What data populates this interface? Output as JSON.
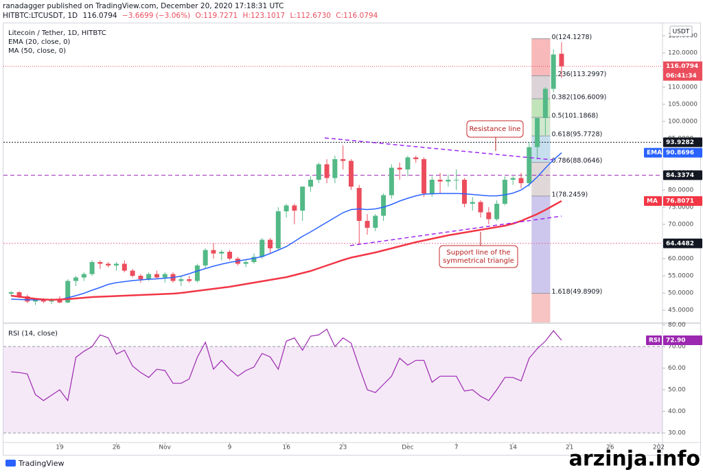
{
  "header": {
    "published": "ranadagger published on TradingView.com, December 20, 2020 17:18:31 UTC",
    "symbol": "HITBTC:LTCUSDT, 1D",
    "quote": "116.0794",
    "change": "−3.6699 (−3.06%)",
    "open": "O:119.7271",
    "high": "H:123.1017",
    "low": "L:112.6730",
    "close": "C:116.0794"
  },
  "footer": {
    "brand": "TradingView",
    "watermark": "arzinja.info"
  },
  "chart_data": [
    {
      "type": "candlestick",
      "title": "Litecoin / Tether, 1D, HITBTC",
      "unit": "USDT",
      "up_color": "#53b987",
      "down_color": "#eb4d5c",
      "open": [
        49.8,
        50.2,
        49,
        47.5,
        48,
        47.5,
        48.2,
        47.2,
        53.5,
        54.5,
        55.5,
        59,
        58.5,
        58,
        58.5,
        56.5,
        55,
        54,
        55.5,
        54.5,
        55.5,
        53.5,
        54,
        53.5,
        58,
        62.5,
        61.5,
        62,
        60,
        58.5,
        59,
        60.5,
        65.5,
        63,
        73.8,
        75.5,
        74,
        81,
        83,
        87.5,
        83.5,
        89,
        88.5,
        80.6,
        71,
        69,
        72.5,
        78.5,
        86.5,
        86,
        89.5,
        89,
        79,
        83,
        82.5,
        83,
        83,
        76,
        76.5,
        73.5,
        71.5,
        76,
        83,
        83.5,
        82,
        92.5,
        101,
        109.5,
        119.7271
      ],
      "high": [
        50.5,
        50.5,
        49.5,
        48.5,
        48.5,
        48.5,
        49,
        54,
        55,
        56,
        59.5,
        59.5,
        59,
        59,
        59.5,
        57,
        55.5,
        56,
        56.5,
        56,
        56,
        55,
        55,
        58.5,
        63,
        64.5,
        62.5,
        62.5,
        60.5,
        59.5,
        61.5,
        66,
        66,
        75,
        76,
        76,
        81,
        84,
        88,
        89,
        90,
        93,
        89,
        81.5,
        73,
        73,
        79,
        87.5,
        88,
        90,
        90,
        89.5,
        84,
        85,
        84.5,
        86,
        83.5,
        78,
        77,
        75,
        77,
        84,
        84,
        85,
        94,
        101,
        110,
        121,
        123.1017
      ],
      "low": [
        49,
        48.5,
        47,
        46.5,
        47,
        46.8,
        47,
        47,
        52,
        53.5,
        55,
        57,
        57.5,
        56.5,
        56,
        54.5,
        53,
        53.5,
        54,
        53,
        53,
        52,
        53,
        53,
        57,
        60,
        59.5,
        59.5,
        58,
        57.5,
        58.5,
        60,
        61.5,
        62.5,
        72,
        70,
        71,
        79.5,
        82,
        82,
        82,
        86,
        80,
        64,
        67,
        68,
        71,
        77.5,
        83,
        84,
        88,
        78,
        78,
        79,
        81,
        80,
        75,
        74,
        72,
        70,
        71,
        75.5,
        81.5,
        80.5,
        81,
        89,
        96,
        108.5,
        112.673
      ],
      "close": [
        50.2,
        49,
        47.5,
        48,
        47.5,
        48.2,
        47.2,
        53.5,
        54.5,
        55.5,
        59,
        58.5,
        58,
        58.5,
        56.5,
        55,
        54,
        55.5,
        54.5,
        55.5,
        53.5,
        54,
        53.5,
        58,
        62.5,
        61.5,
        62,
        60,
        58.5,
        59,
        60.5,
        65.5,
        63,
        73.8,
        75.5,
        74,
        81,
        83,
        87.5,
        83.5,
        89,
        88.5,
        81,
        71,
        69,
        72.5,
        78.5,
        86.5,
        86,
        89.5,
        89,
        79,
        83,
        82.5,
        83,
        83,
        76,
        76.5,
        73.5,
        71.5,
        76,
        83,
        83.5,
        82,
        92.5,
        101,
        109.5,
        119.5,
        116.0794
      ],
      "last_label": "116.0794",
      "countdown": "06:41:34",
      "indicators": [
        {
          "name": "EMA (20, close, 0)",
          "short": "EMA",
          "color": "#2962ff",
          "last_label": "90.8696",
          "values": [
            48.2,
            48.1,
            48,
            48,
            48,
            48,
            48,
            48.6,
            49.2,
            49.9,
            50.8,
            51.6,
            52.5,
            53,
            53.3,
            53.6,
            53.8,
            54,
            54.1,
            54.3,
            54.5,
            54.9,
            55.6,
            56.4,
            57.1,
            57.8,
            58.4,
            58.9,
            59.3,
            59.7,
            60.1,
            60.6,
            61.5,
            62.5,
            63.5,
            65,
            66.5,
            67.8,
            69.2,
            70.6,
            72,
            73.4,
            74.3,
            74.5,
            74.3,
            74.5,
            75,
            75.8,
            76.8,
            77.6,
            78.3,
            78.8,
            78.9,
            79,
            79,
            79,
            78.9,
            78.7,
            78.5,
            78.3,
            78.3,
            78.6,
            79.1,
            80,
            81.6,
            83.8,
            86.4,
            88.8,
            90.8696
          ]
        },
        {
          "name": "MA (50, close, 0)",
          "short": "MA",
          "color": "#f23645",
          "last_label": "76.8071",
          "values": [
            49.2,
            48.9,
            48.6,
            48.3,
            48.1,
            48,
            48.1,
            48.2,
            48.4,
            48.6,
            48.8,
            48.9,
            49,
            49.1,
            49.2,
            49.3,
            49.4,
            49.5,
            49.6,
            49.7,
            49.8,
            50,
            50.3,
            50.6,
            50.9,
            51.2,
            51.5,
            51.8,
            52.2,
            52.6,
            53,
            53.4,
            53.8,
            54.2,
            54.6,
            55.2,
            55.8,
            56.4,
            57.2,
            58,
            58.8,
            59.6,
            60.3,
            60.8,
            61.3,
            61.8,
            62.4,
            63,
            63.6,
            64.2,
            64.8,
            65.3,
            65.8,
            66.3,
            66.8,
            67.2,
            67.6,
            68,
            68.4,
            68.8,
            69.2,
            69.6,
            70.2,
            71,
            72,
            73,
            74.2,
            75.5,
            76.8071
          ]
        }
      ],
      "levels": [
        {
          "value": 93.9282,
          "label": "93.9282"
        },
        {
          "value": 84.3374,
          "label": "84.3374"
        },
        {
          "value": 64.4482,
          "label": "64.4482"
        }
      ],
      "fib": {
        "labels": [
          "0(124.1278)",
          "0.236(113.2997)",
          "0.382(106.6009)",
          "0.5(101.1868)",
          "0.618(95.7728)",
          "0.786(88.0646)",
          "1(78.2459)",
          "1.618(49.8909)"
        ],
        "prices": [
          124.1278,
          113.2997,
          106.6009,
          101.1868,
          95.7728,
          88.0646,
          78.2459,
          49.8909
        ]
      },
      "annotations": [
        "Resistance line",
        "Support line of the",
        "symmetrical triangle"
      ],
      "ylim": [
        41.4,
        127
      ],
      "yticks": [
        {
          "value": 45,
          "label": "45.0000"
        },
        {
          "value": 50,
          "label": "50.0000"
        },
        {
          "value": 55,
          "label": "55.0000"
        },
        {
          "value": 60,
          "label": "60.0000"
        },
        {
          "value": 65,
          "label": "65.0000"
        },
        {
          "value": 70,
          "label": "70.0000"
        },
        {
          "value": 75,
          "label": "75.0000"
        },
        {
          "value": 80,
          "label": "80.0000"
        },
        {
          "value": 85,
          "label": "85.0000"
        },
        {
          "value": 90,
          "label": "90.0000"
        },
        {
          "value": 95,
          "label": "95.0000"
        },
        {
          "value": 100,
          "label": "100.0000"
        },
        {
          "value": 105,
          "label": "105.0000"
        },
        {
          "value": 110,
          "label": "110.0000"
        },
        {
          "value": 115,
          "label": "115.0000"
        },
        {
          "value": 120,
          "label": "120.0000"
        },
        {
          "value": 125,
          "label": "125.0000"
        }
      ],
      "xlim": [
        -0.95,
        80.47
      ],
      "xticks": [
        {
          "value": 6,
          "label": "19"
        },
        {
          "value": 13,
          "label": "26"
        },
        {
          "value": 19,
          "label": "Nov"
        },
        {
          "value": 27,
          "label": "9"
        },
        {
          "value": 34,
          "label": "16"
        },
        {
          "value": 41,
          "label": "23"
        },
        {
          "value": 49,
          "label": "Dec"
        },
        {
          "value": 55,
          "label": "7"
        },
        {
          "value": 62,
          "label": "14"
        },
        {
          "value": 69,
          "label": "21"
        },
        {
          "value": 74,
          "label": "26"
        },
        {
          "value": 80,
          "label": "202"
        }
      ]
    },
    {
      "type": "line",
      "title": "RSI (14, close)",
      "series": [
        {
          "name": "RSI",
          "color": "#9c27b0",
          "last_label": "72.90",
          "values": [
            58.3,
            58,
            57.3,
            47.8,
            45,
            47.5,
            50,
            45,
            65,
            67.8,
            70,
            75.4,
            74,
            66.5,
            68.3,
            61,
            58,
            55.7,
            59.5,
            58.9,
            53,
            53,
            55,
            65,
            72,
            59.5,
            63.6,
            59.5,
            56.3,
            58.9,
            60.5,
            66.8,
            65.2,
            59.5,
            72.5,
            74,
            68.3,
            74.8,
            75.4,
            78,
            70,
            74,
            71.6,
            60.5,
            50,
            48.7,
            52.5,
            56.3,
            64.6,
            61.4,
            63.6,
            63.6,
            53.5,
            56.3,
            56.3,
            56.3,
            49.4,
            50,
            47,
            45,
            50,
            55.7,
            55.7,
            54.1,
            64.6,
            69,
            72.5,
            77.3,
            72.9
          ]
        }
      ],
      "band": [
        30,
        70
      ],
      "ylim": [
        25.6,
        80.2
      ],
      "yticks": [
        {
          "value": 30,
          "label": "30.00"
        },
        {
          "value": 40,
          "label": "40.00"
        },
        {
          "value": 50,
          "label": "50.00"
        },
        {
          "value": 60,
          "label": "60.00"
        },
        {
          "value": 70,
          "label": "70.00"
        },
        {
          "value": 80,
          "label": "80.00"
        }
      ]
    }
  ]
}
